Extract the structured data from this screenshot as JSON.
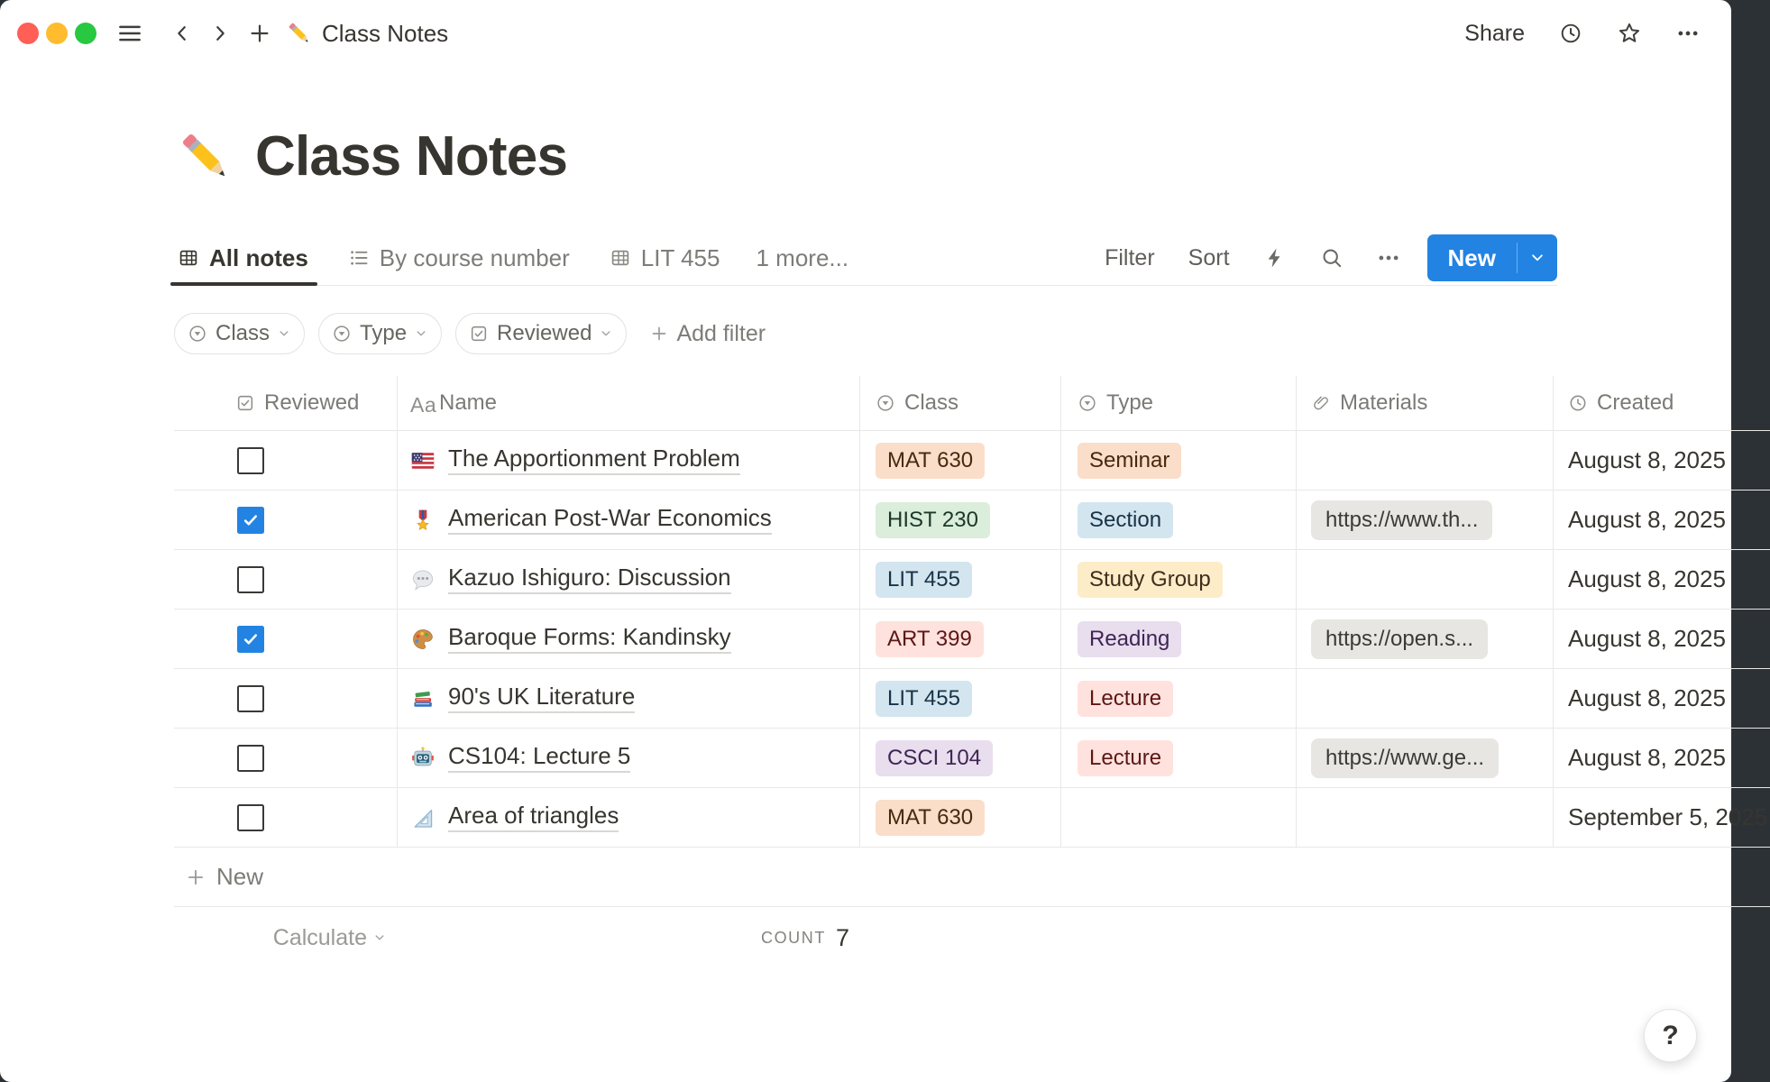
{
  "colors": {
    "accent_blue": "#2383E2",
    "divider": "#E9E8E6",
    "text_dark": "#37352F",
    "text_gray": "#7D7C78",
    "traffic_lights": [
      "#FF5F57",
      "#FEBC2E",
      "#28C840"
    ],
    "tag_palette": {
      "orange": {
        "bg": "#FADEC9",
        "fg": "#49290E"
      },
      "green": {
        "bg": "#DBEDDB",
        "fg": "#1C3829"
      },
      "blue": {
        "bg": "#D3E5EF",
        "fg": "#183347"
      },
      "yellow": {
        "bg": "#FDECC8",
        "fg": "#402C1B"
      },
      "red": {
        "bg": "#FFE2DD",
        "fg": "#5D1715"
      },
      "purple": {
        "bg": "#E8DEEE",
        "fg": "#412454"
      },
      "gray_chip": {
        "bg": "#E7E6E3",
        "fg": "#3B3A35"
      }
    }
  },
  "topbar": {
    "icons": [
      "hamburger-icon",
      "chevron-left-icon",
      "chevron-right-icon",
      "plus-icon"
    ],
    "breadcrumb": {
      "icon": "pencil",
      "label": "Class Notes"
    },
    "share_label": "Share",
    "right_icons": [
      "history-clock-icon",
      "star-icon",
      "ellipsis-icon"
    ]
  },
  "page": {
    "icon": "pencil",
    "title": "Class Notes"
  },
  "views": {
    "tabs": [
      {
        "icon": "table",
        "label": "All notes",
        "active": true
      },
      {
        "icon": "list",
        "label": "By course number",
        "active": false
      },
      {
        "icon": "table",
        "label": "LIT 455",
        "active": false
      }
    ],
    "more_label": "1 more...",
    "toolbar": {
      "filter_label": "Filter",
      "sort_label": "Sort",
      "icons": [
        "bolt-icon",
        "search-icon",
        "ellipsis-icon"
      ],
      "new_label": "New"
    }
  },
  "filters": {
    "chips": [
      {
        "icon": "select",
        "label": "Class"
      },
      {
        "icon": "select",
        "label": "Type"
      },
      {
        "icon": "checkbox",
        "label": "Reviewed"
      }
    ],
    "add_label": "Add filter"
  },
  "table": {
    "columns": [
      {
        "icon": "checkbox",
        "label": "Reviewed"
      },
      {
        "icon": "text",
        "label": "Name"
      },
      {
        "icon": "select",
        "label": "Class"
      },
      {
        "icon": "select",
        "label": "Type"
      },
      {
        "icon": "clip",
        "label": "Materials"
      },
      {
        "icon": "clock",
        "label": "Created"
      }
    ],
    "rows": [
      {
        "reviewed": false,
        "emoji": "us-flag",
        "name": "The Apportionment Problem",
        "class": {
          "label": "MAT 630",
          "color": "orange"
        },
        "type": {
          "label": "Seminar",
          "color": "orange"
        },
        "materials": "",
        "created": "August 8, 2025"
      },
      {
        "reviewed": true,
        "emoji": "medal",
        "name": "American Post-War Economics",
        "class": {
          "label": "HIST 230",
          "color": "green"
        },
        "type": {
          "label": "Section",
          "color": "blue"
        },
        "materials": "https://www.th...",
        "created": "August 8, 2025"
      },
      {
        "reviewed": false,
        "emoji": "speech",
        "name": "Kazuo Ishiguro: Discussion",
        "class": {
          "label": "LIT 455",
          "color": "blue"
        },
        "type": {
          "label": "Study Group",
          "color": "yellow"
        },
        "materials": "",
        "created": "August 8, 2025"
      },
      {
        "reviewed": true,
        "emoji": "palette",
        "name": "Baroque Forms: Kandinsky",
        "class": {
          "label": "ART 399",
          "color": "red"
        },
        "type": {
          "label": "Reading",
          "color": "purple"
        },
        "materials": "https://open.s...",
        "created": "August 8, 2025"
      },
      {
        "reviewed": false,
        "emoji": "books",
        "name": "90's UK Literature",
        "class": {
          "label": "LIT 455",
          "color": "blue"
        },
        "type": {
          "label": "Lecture",
          "color": "red"
        },
        "materials": "",
        "created": "August 8, 2025"
      },
      {
        "reviewed": false,
        "emoji": "robot",
        "name": "CS104: Lecture 5",
        "class": {
          "label": "CSCI 104",
          "color": "purple"
        },
        "type": {
          "label": "Lecture",
          "color": "red"
        },
        "materials": "https://www.ge...",
        "created": "August 8, 2025"
      },
      {
        "reviewed": false,
        "emoji": "triangle-ruler",
        "name": "Area of triangles",
        "class": {
          "label": "MAT 630",
          "color": "orange"
        },
        "type": null,
        "materials": "",
        "created": "September 5, 2025"
      }
    ],
    "new_row_label": "New",
    "footer": {
      "calculate_label": "Calculate",
      "count_label": "COUNT",
      "count_value": "7"
    }
  },
  "help_label": "?"
}
